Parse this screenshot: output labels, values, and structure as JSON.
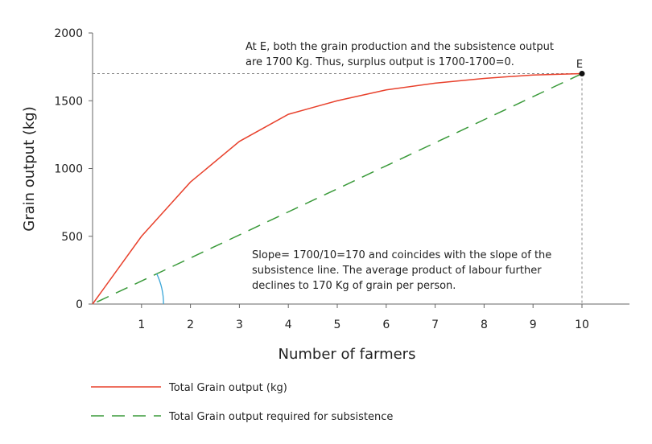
{
  "chart_data": {
    "type": "line",
    "title": "",
    "xlabel": "Number of farmers",
    "ylabel": "Grain output (kg)",
    "xlim": [
      0,
      11
    ],
    "ylim": [
      0,
      2000
    ],
    "x_ticks": [
      "1",
      "2",
      "3",
      "4",
      "5",
      "6",
      "7",
      "8",
      "9",
      "10"
    ],
    "y_ticks": [
      "0",
      "500",
      "1000",
      "1500",
      "2000"
    ],
    "grid": false,
    "legend_position": "bottom",
    "series": [
      {
        "name": "Total Grain output (kg)",
        "style": "solid",
        "color": "#e8412c",
        "x": [
          0,
          1,
          2,
          3,
          4,
          5,
          6,
          7,
          8,
          9,
          10
        ],
        "y": [
          0,
          500,
          900,
          1200,
          1400,
          1500,
          1580,
          1630,
          1665,
          1690,
          1700
        ]
      },
      {
        "name": "Total Grain output required for subsistence",
        "style": "dashed",
        "color": "#3a9a3a",
        "x": [
          0,
          10
        ],
        "y": [
          0,
          1700
        ]
      }
    ],
    "point": {
      "label": "E",
      "x": 10,
      "y": 1700
    },
    "annotations": {
      "top_line1": "At E, both the grain production and the subsistence output",
      "top_line2": "are 1700 Kg. Thus, surplus output is 1700-1700=0.",
      "bottom_line1": "Slope= 1700/10=170 and coincides with the slope of the",
      "bottom_line2": "subsistence line. The average product of labour further",
      "bottom_line3": "declines to 170 Kg of grain per person."
    },
    "angle_arc_color": "#3aa6d8"
  }
}
